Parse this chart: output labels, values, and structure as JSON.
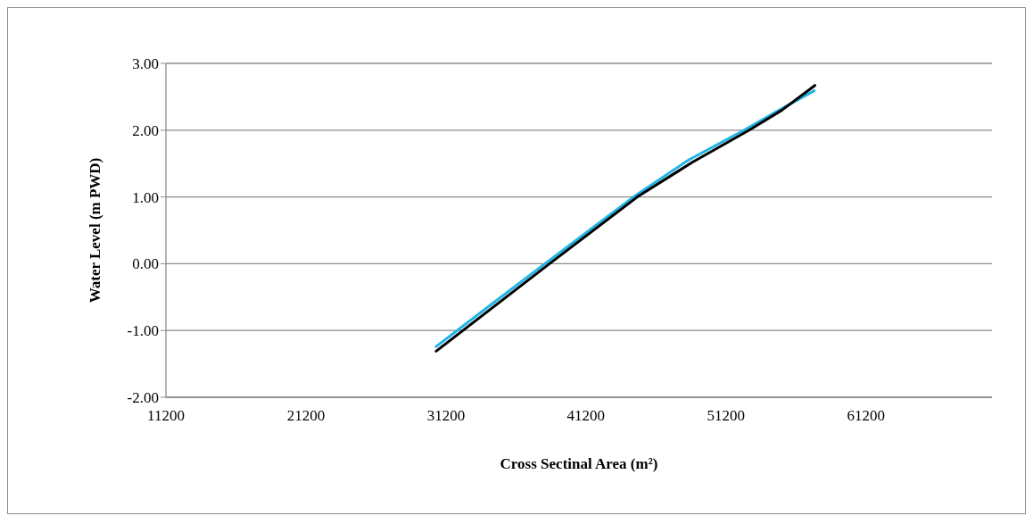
{
  "chart_data": {
    "type": "line",
    "xlabel": "Cross Sectinal Area (m²)",
    "ylabel": "Water Level  (m PWD)",
    "xlim": [
      11200,
      70200
    ],
    "xticks": [
      11200,
      21200,
      31200,
      41200,
      51200,
      61200
    ],
    "ylim": [
      -2,
      3
    ],
    "yticks": [
      {
        "value": -2,
        "label": "-2.00"
      },
      {
        "value": -1,
        "label": "-1.00"
      },
      {
        "value": 0,
        "label": "0.00"
      },
      {
        "value": 1,
        "label": "1.00"
      },
      {
        "value": 2,
        "label": "2.00"
      },
      {
        "value": 3,
        "label": "3.00"
      }
    ],
    "grid": "y",
    "legend": false,
    "marker": "none",
    "line_style": "solid",
    "series": [
      {
        "color": "#1fb4e8",
        "x": [
          30500,
          34500,
          38400,
          44600,
          48500,
          52500,
          55000,
          57500
        ],
        "values": [
          -1.24,
          -0.6,
          0.02,
          1.0,
          1.55,
          2.0,
          2.3,
          2.59
        ]
      },
      {
        "color": "#000000",
        "x": [
          30500,
          38600,
          44870,
          48800,
          52860,
          55200,
          57550
        ],
        "values": [
          -1.31,
          0,
          1.0,
          1.52,
          2.0,
          2.3,
          2.67
        ]
      }
    ]
  }
}
